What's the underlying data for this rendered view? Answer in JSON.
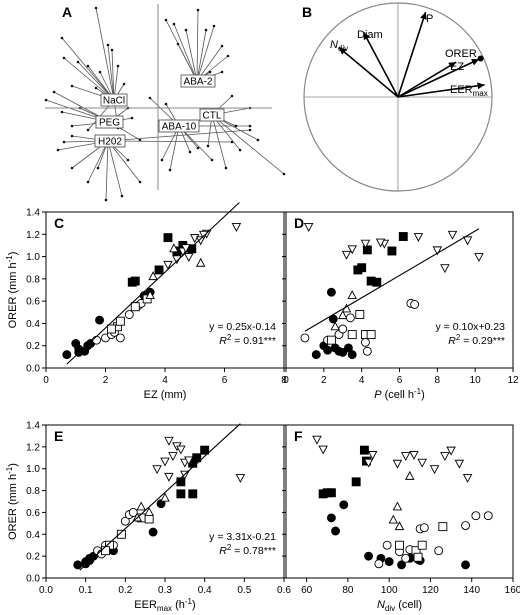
{
  "panels": {
    "A": {
      "letter": "A",
      "labels": [
        "NaCl",
        "PEG",
        "H202",
        "ABA-2",
        "ABA-10",
        "CTL"
      ]
    },
    "B": {
      "letter": "B",
      "vectors": [
        {
          "label": "P",
          "angle_deg": 72,
          "length": 0.95
        },
        {
          "label": "Diam",
          "angle_deg": 118,
          "length": 0.78
        },
        {
          "label": "Ndiv",
          "angle_deg": 140,
          "length": 0.82
        },
        {
          "label": "ORER",
          "angle_deg": 25,
          "length": 0.95
        },
        {
          "label": "EZ",
          "angle_deg": 31,
          "length": 0.72
        },
        {
          "label": "EERmax",
          "angle_deg": 8,
          "length": 0.93
        }
      ]
    }
  },
  "chart_data": [
    {
      "id": "C",
      "letter": "C",
      "type": "scatter",
      "xlabel": "EZ (mm)",
      "ylabel": "ORER (mm h",
      "ylabel_sup": "-1",
      "ylabel_end": ")",
      "xlim": [
        0,
        8
      ],
      "ylim": [
        0,
        1.4
      ],
      "xticks": [
        0,
        2,
        4,
        6,
        8
      ],
      "yticks": [
        0.0,
        0.2,
        0.4,
        0.6,
        0.8,
        1.0,
        1.2,
        1.4
      ],
      "eq": "y = 0.25x-0.14",
      "r2_label": "R",
      "r2_value": " = 0.91***",
      "fit": {
        "slope": 0.25,
        "intercept": -0.14,
        "x_range": [
          0.7,
          6.5
        ]
      },
      "series": [
        {
          "marker": "circle-filled",
          "points": [
            [
              0.7,
              0.12
            ],
            [
              1.0,
              0.22
            ],
            [
              1.1,
              0.17
            ],
            [
              1.3,
              0.15
            ],
            [
              1.4,
              0.2
            ],
            [
              1.8,
              0.43
            ],
            [
              3.3,
              0.65
            ],
            [
              3.5,
              0.68
            ],
            [
              1.1,
              0.14
            ],
            [
              1.5,
              0.22
            ]
          ]
        },
        {
          "marker": "circle-open",
          "points": [
            [
              1.7,
              0.25
            ],
            [
              2.0,
              0.27
            ],
            [
              2.2,
              0.3
            ],
            [
              2.3,
              0.32
            ],
            [
              2.5,
              0.27
            ],
            [
              2.8,
              0.48
            ],
            [
              3.0,
              0.55
            ],
            [
              3.1,
              0.56
            ],
            [
              3.2,
              0.58
            ]
          ]
        },
        {
          "marker": "square-open",
          "points": [
            [
              2.4,
              0.37
            ],
            [
              2.5,
              0.42
            ],
            [
              3.0,
              0.55
            ],
            [
              3.4,
              0.62
            ],
            [
              2.2,
              0.35
            ]
          ]
        },
        {
          "marker": "square-filled",
          "points": [
            [
              2.9,
              0.77
            ],
            [
              3.0,
              0.78
            ],
            [
              3.8,
              0.88
            ],
            [
              4.4,
              1.05
            ],
            [
              4.6,
              1.1
            ],
            [
              4.1,
              1.17
            ],
            [
              4.9,
              1.07
            ]
          ]
        },
        {
          "marker": "triangle-up",
          "points": [
            [
              3.5,
              0.65
            ],
            [
              4.3,
              1.07
            ],
            [
              5.2,
              0.94
            ],
            [
              3.6,
              0.82
            ]
          ]
        },
        {
          "marker": "triangle-down",
          "points": [
            [
              4.1,
              0.93
            ],
            [
              4.4,
              0.98
            ],
            [
              4.6,
              1.05
            ],
            [
              4.8,
              1.0
            ],
            [
              5.0,
              1.17
            ],
            [
              5.2,
              1.15
            ],
            [
              5.4,
              1.21
            ],
            [
              5.3,
              1.2
            ],
            [
              6.4,
              1.27
            ],
            [
              4.7,
              1.08
            ]
          ]
        }
      ]
    },
    {
      "id": "D",
      "letter": "D",
      "type": "scatter",
      "xlabel": "P",
      "xlabel_rest": " (cell h",
      "xlabel_sup": "-1",
      "xlabel_end": ")",
      "xlim": [
        0,
        12
      ],
      "ylim": [
        0,
        1.4
      ],
      "xticks": [
        0,
        2,
        4,
        6,
        8,
        10,
        12
      ],
      "yticks": [
        0.0,
        0.2,
        0.4,
        0.6,
        0.8,
        1.0,
        1.2,
        1.4
      ],
      "eq": "y = 0.10x+0.23",
      "r2_label": "R",
      "r2_value": " = 0.29***",
      "fit": {
        "slope": 0.1,
        "intercept": 0.23,
        "x_range": [
          1.0,
          10.2
        ]
      },
      "series": [
        {
          "marker": "circle-filled",
          "points": [
            [
              1.6,
              0.12
            ],
            [
              2.2,
              0.16
            ],
            [
              2.6,
              0.18
            ],
            [
              2.8,
              0.15
            ],
            [
              3.0,
              0.14
            ],
            [
              3.3,
              0.18
            ],
            [
              2.4,
              0.68
            ],
            [
              3.5,
              0.12
            ],
            [
              2.5,
              0.44
            ],
            [
              2.0,
              0.2
            ]
          ]
        },
        {
          "marker": "circle-open",
          "points": [
            [
              1.0,
              0.27
            ],
            [
              2.2,
              0.25
            ],
            [
              2.8,
              0.3
            ],
            [
              3.0,
              0.35
            ],
            [
              3.4,
              0.45
            ],
            [
              4.2,
              0.23
            ],
            [
              4.3,
              0.15
            ],
            [
              6.6,
              0.58
            ],
            [
              6.8,
              0.57
            ]
          ]
        },
        {
          "marker": "square-open",
          "points": [
            [
              3.5,
              0.3
            ],
            [
              3.9,
              0.48
            ],
            [
              4.2,
              0.3
            ],
            [
              4.5,
              0.3
            ],
            [
              2.4,
              0.25
            ]
          ]
        },
        {
          "marker": "square-filled",
          "points": [
            [
              3.8,
              0.88
            ],
            [
              4.0,
              0.9
            ],
            [
              4.5,
              0.78
            ],
            [
              4.8,
              0.77
            ],
            [
              5.6,
              1.05
            ],
            [
              6.2,
              1.18
            ],
            [
              4.3,
              1.06
            ]
          ]
        },
        {
          "marker": "triangle-up",
          "points": [
            [
              2.6,
              0.37
            ],
            [
              3.0,
              0.47
            ],
            [
              3.2,
              0.53
            ],
            [
              3.5,
              0.65
            ]
          ]
        },
        {
          "marker": "triangle-down",
          "points": [
            [
              1.2,
              1.27
            ],
            [
              3.2,
              1.02
            ],
            [
              3.5,
              1.07
            ],
            [
              4.2,
              1.12
            ],
            [
              5.2,
              1.12
            ],
            [
              5.0,
              1.13
            ],
            [
              7.0,
              1.18
            ],
            [
              8.0,
              1.06
            ],
            [
              8.8,
              1.2
            ],
            [
              9.6,
              1.15
            ],
            [
              10.2,
              1.0
            ],
            [
              8.4,
              0.9
            ]
          ]
        }
      ]
    },
    {
      "id": "E",
      "letter": "E",
      "type": "scatter",
      "xlabel": "EER",
      "xlabel_sub": "max",
      "xlabel_rest": " (h",
      "xlabel_sup": "-1",
      "xlabel_end": ")",
      "ylabel": "ORER (mm h",
      "ylabel_sup": "-1",
      "ylabel_end": ")",
      "xlim": [
        0,
        0.6
      ],
      "ylim": [
        0,
        1.4
      ],
      "xticks": [
        0.0,
        0.1,
        0.2,
        0.3,
        0.4,
        0.5,
        0.6
      ],
      "yticks": [
        0.0,
        0.2,
        0.4,
        0.6,
        0.8,
        1.0,
        1.2,
        1.4
      ],
      "eq": "y = 3.31x-0.21",
      "r2_label": "R",
      "r2_value": " = 0.78***",
      "fit": {
        "slope": 3.31,
        "intercept": -0.21,
        "x_range": [
          0.085,
          0.49
        ]
      },
      "series": [
        {
          "marker": "circle-filled",
          "points": [
            [
              0.08,
              0.12
            ],
            [
              0.1,
              0.15
            ],
            [
              0.11,
              0.18
            ],
            [
              0.12,
              0.2
            ],
            [
              0.17,
              0.25
            ],
            [
              0.27,
              0.42
            ],
            [
              0.29,
              0.68
            ],
            [
              0.1,
              0.13
            ],
            [
              0.11,
              0.16
            ]
          ]
        },
        {
          "marker": "circle-open",
          "points": [
            [
              0.13,
              0.25
            ],
            [
              0.15,
              0.3
            ],
            [
              0.17,
              0.3
            ],
            [
              0.19,
              0.4
            ],
            [
              0.2,
              0.52
            ],
            [
              0.21,
              0.58
            ],
            [
              0.22,
              0.6
            ],
            [
              0.14,
              0.22
            ]
          ]
        },
        {
          "marker": "square-open",
          "points": [
            [
              0.16,
              0.3
            ],
            [
              0.19,
              0.4
            ],
            [
              0.24,
              0.55
            ],
            [
              0.26,
              0.54
            ],
            [
              0.15,
              0.25
            ]
          ]
        },
        {
          "marker": "square-filled",
          "points": [
            [
              0.34,
              0.77
            ],
            [
              0.37,
              0.77
            ],
            [
              0.34,
              0.88
            ],
            [
              0.38,
              1.1
            ],
            [
              0.4,
              1.17
            ],
            [
              0.37,
              1.05
            ]
          ]
        },
        {
          "marker": "triangle-up",
          "points": [
            [
              0.23,
              0.55
            ],
            [
              0.24,
              0.65
            ],
            [
              0.26,
              0.6
            ],
            [
              0.3,
              0.73
            ]
          ]
        },
        {
          "marker": "triangle-down",
          "points": [
            [
              0.28,
              1.0
            ],
            [
              0.3,
              1.07
            ],
            [
              0.32,
              1.12
            ],
            [
              0.33,
              1.21
            ],
            [
              0.34,
              1.18
            ],
            [
              0.31,
              1.26
            ],
            [
              0.35,
              1.06
            ],
            [
              0.36,
              1.08
            ],
            [
              0.35,
              0.95
            ],
            [
              0.49,
              0.92
            ],
            [
              0.31,
              0.93
            ]
          ]
        }
      ]
    },
    {
      "id": "F",
      "letter": "F",
      "type": "scatter",
      "xlabel": "N",
      "xlabel_sub": "div",
      "xlabel_rest": " (cell)",
      "xlim": [
        50,
        160
      ],
      "ylim": [
        0,
        1.4
      ],
      "xticks": [
        60,
        80,
        100,
        120,
        140,
        160
      ],
      "yticks": [
        0.0,
        0.2,
        0.4,
        0.6,
        0.8,
        1.0,
        1.2,
        1.4
      ],
      "series": [
        {
          "marker": "circle-filled",
          "points": [
            [
              74,
              0.43
            ],
            [
              72,
              0.55
            ],
            [
              78,
              0.67
            ],
            [
              90,
              0.2
            ],
            [
              96,
              0.18
            ],
            [
              100,
              0.15
            ],
            [
              106,
              0.12
            ],
            [
              110,
              0.18
            ],
            [
              114,
              0.17
            ],
            [
              115,
              0.16
            ],
            [
              137,
              0.12
            ]
          ]
        },
        {
          "marker": "circle-open",
          "points": [
            [
              95,
              0.13
            ],
            [
              99,
              0.3
            ],
            [
              105,
              0.24
            ],
            [
              108,
              0.18
            ],
            [
              110,
              0.26
            ],
            [
              115,
              0.45
            ],
            [
              117,
              0.46
            ],
            [
              124,
              0.25
            ],
            [
              137,
              0.48
            ],
            [
              142,
              0.57
            ],
            [
              148,
              0.57
            ]
          ]
        },
        {
          "marker": "square-open",
          "points": [
            [
              105,
              0.3
            ],
            [
              113,
              0.25
            ],
            [
              116,
              0.3
            ],
            [
              126,
              0.47
            ],
            [
              114,
              0.19
            ]
          ]
        },
        {
          "marker": "square-filled",
          "points": [
            [
              68,
              0.77
            ],
            [
              70,
              0.78
            ],
            [
              72,
              0.78
            ],
            [
              84,
              0.88
            ],
            [
              88,
              1.17
            ],
            [
              89,
              1.07
            ]
          ]
        },
        {
          "marker": "triangle-up",
          "points": [
            [
              102,
              0.53
            ],
            [
              105,
              0.47
            ],
            [
              104,
              0.65
            ],
            [
              110,
              0.93
            ]
          ]
        },
        {
          "marker": "triangle-down",
          "points": [
            [
              65,
              1.27
            ],
            [
              68,
              1.18
            ],
            [
              90,
              1.06
            ],
            [
              92,
              1.13
            ],
            [
              104,
              1.05
            ],
            [
              108,
              1.12
            ],
            [
              112,
              1.13
            ],
            [
              116,
              1.06
            ],
            [
              122,
              1.0
            ],
            [
              127,
              1.12
            ],
            [
              130,
              1.17
            ],
            [
              134,
              1.05
            ],
            [
              138,
              0.92
            ]
          ]
        }
      ]
    }
  ]
}
